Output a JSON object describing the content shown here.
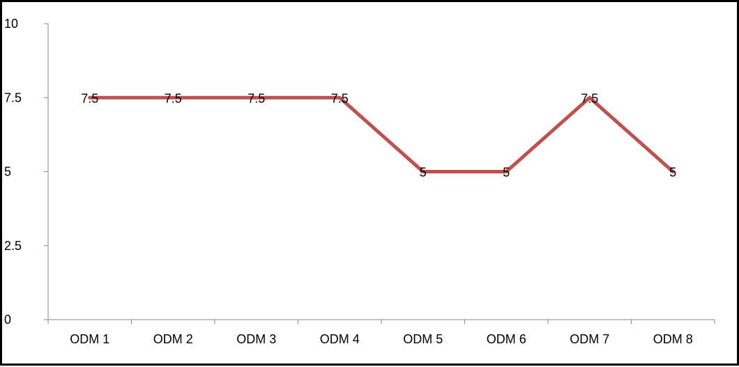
{
  "chart_data": {
    "type": "line",
    "categories": [
      "ODM 1",
      "ODM 2",
      "ODM 3",
      "ODM 4",
      "ODM 5",
      "ODM 6",
      "ODM 7",
      "ODM 8"
    ],
    "series": [
      {
        "values": [
          7.5,
          7.5,
          7.5,
          7.5,
          5,
          5,
          7.5,
          5
        ]
      }
    ],
    "data_labels": [
      "7.5",
      "7.5",
      "7.5",
      "7.5",
      "5",
      "5",
      "7.5",
      "5"
    ],
    "y_ticks": [
      0,
      2.5,
      5,
      7.5,
      10
    ],
    "y_tick_labels": [
      "0",
      "2.5",
      "5",
      "7.5",
      "10"
    ],
    "ylim": [
      0,
      10
    ],
    "grid": false,
    "legend": "none",
    "line_color": "#C0504D",
    "axis_color": "#868686"
  }
}
